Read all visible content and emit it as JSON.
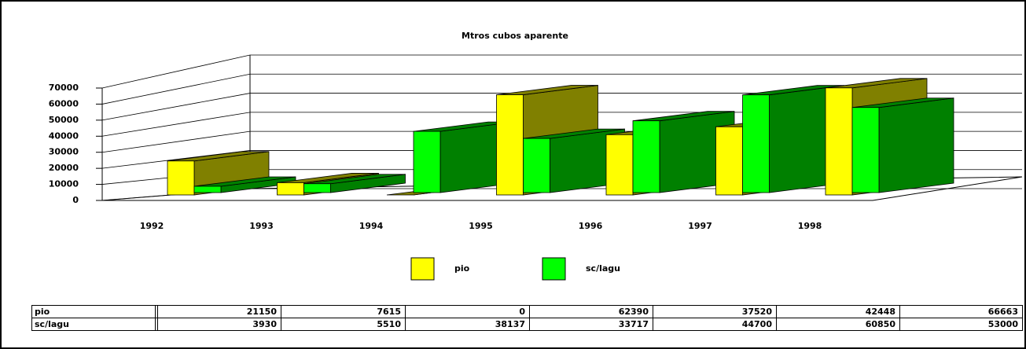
{
  "chart_data": {
    "type": "bar3d",
    "title": "Mtros cubos aparente",
    "categories": [
      "1992",
      "1993",
      "1994",
      "1995",
      "1996",
      "1997",
      "1998"
    ],
    "series": [
      {
        "name": "pio",
        "color": "#ffff00",
        "shade": "#808000",
        "values": [
          21150,
          7615,
          0,
          62390,
          37520,
          42448,
          66663
        ]
      },
      {
        "name": "sc/lagu",
        "color": "#00ff00",
        "shade": "#008000",
        "values": [
          3930,
          5510,
          38137,
          33717,
          44700,
          60850,
          53000
        ]
      }
    ],
    "ylim": [
      0,
      70000
    ],
    "yticks": [
      0,
      10000,
      20000,
      30000,
      40000,
      50000,
      60000,
      70000
    ],
    "grid": true
  }
}
